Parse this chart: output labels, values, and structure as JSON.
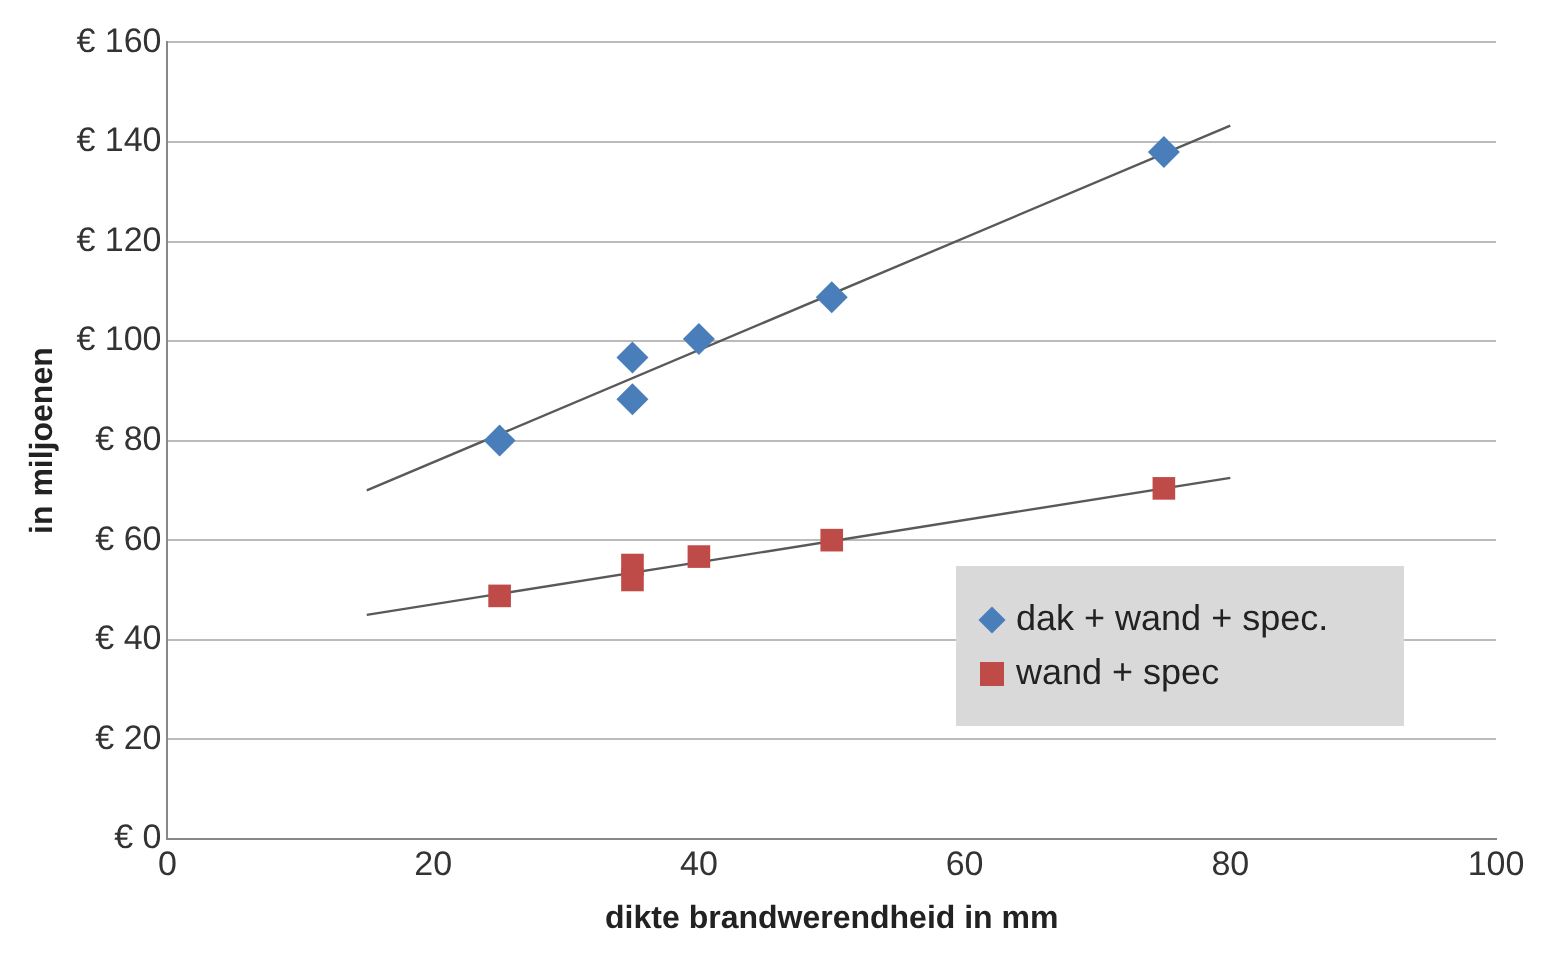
{
  "chart_data": {
    "type": "scatter",
    "xlabel": "dikte brandwerendheid in mm",
    "ylabel": "in miljoenen",
    "xlim": [
      0,
      100
    ],
    "xticks": [
      0,
      20,
      40,
      60,
      80,
      100
    ],
    "ylim": [
      0,
      160
    ],
    "yticks": [
      {
        "value": 0,
        "label": "€ 0"
      },
      {
        "value": 20,
        "label": "€ 20"
      },
      {
        "value": 40,
        "label": "€ 40"
      },
      {
        "value": 60,
        "label": "€ 60"
      },
      {
        "value": 80,
        "label": "€ 80"
      },
      {
        "value": 100,
        "label": "€ 100"
      },
      {
        "value": 120,
        "label": "€ 120"
      },
      {
        "value": 140,
        "label": "€ 140"
      },
      {
        "value": 160,
        "label": "€ 160"
      }
    ],
    "grid": "y",
    "legend": "bottom right",
    "series": [
      {
        "name": "dak + wand + spec.",
        "color": "#4a7ebb",
        "marker": "diamond",
        "x": [
          25,
          35,
          35,
          40,
          50,
          75
        ],
        "values": [
          80,
          96.7,
          88.3,
          100.4,
          108.8,
          138
        ]
      },
      {
        "name": "wand + spec",
        "color": "#be4b48",
        "marker": "square",
        "x": [
          25,
          35,
          35,
          40,
          50,
          75
        ],
        "values": [
          48.8,
          55,
          52,
          56.7,
          60,
          70.4
        ]
      },
      {
        "type": "line",
        "color": "#595959",
        "marker": "none",
        "x": [
          15,
          80
        ],
        "values": [
          70,
          143.3
        ]
      },
      {
        "type": "line",
        "color": "#595959",
        "marker": "none",
        "x": [
          15,
          80
        ],
        "values": [
          45,
          72.5
        ]
      }
    ]
  }
}
